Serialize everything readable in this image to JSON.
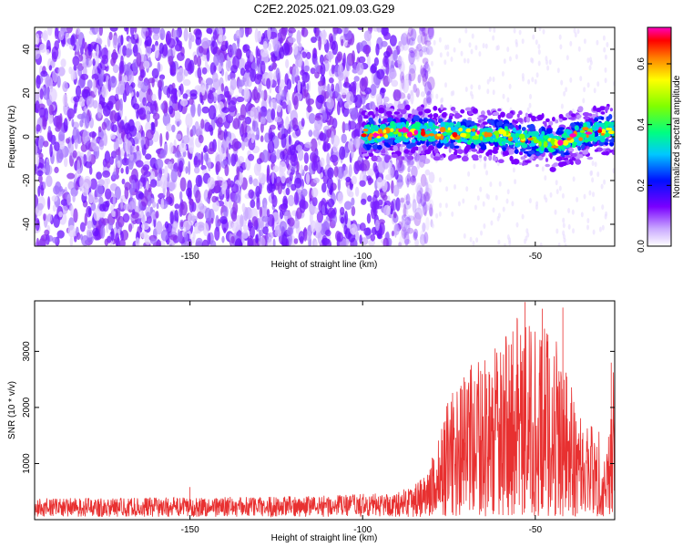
{
  "figure": {
    "title": "C2E2.2025.021.09.03.G29"
  },
  "chart_data": [
    {
      "type": "heatmap",
      "xlabel": "Height of straight line (km)",
      "ylabel": "Frequency (Hz)",
      "xlim": [
        -195,
        -27
      ],
      "ylim": [
        -50,
        50
      ],
      "xticks": [
        -150,
        -100,
        -50
      ],
      "xtick_labels": [
        "-150",
        "-100",
        "-50"
      ],
      "yticks": [
        -40,
        -20,
        0,
        20,
        40
      ],
      "ytick_labels": [
        "-40",
        "-20",
        "0",
        "20",
        "40"
      ],
      "noise_region_x": [
        -195,
        -80
      ],
      "signal_band": [
        {
          "x": -100,
          "f": 1
        },
        {
          "x": -90,
          "f": 2
        },
        {
          "x": -80,
          "f": 2
        },
        {
          "x": -70,
          "f": 1.5
        },
        {
          "x": -60,
          "f": 0.5
        },
        {
          "x": -50,
          "f": -2
        },
        {
          "x": -45,
          "f": -3
        },
        {
          "x": -40,
          "f": -1
        },
        {
          "x": -35,
          "f": 2
        },
        {
          "x": -27,
          "f": 3
        }
      ],
      "signal_halfwidth_hz": 4,
      "colorbar": {
        "label": "Normalized spectral amplitude",
        "range": [
          0.0,
          0.72
        ],
        "ticks": [
          0.0,
          0.2,
          0.4,
          0.6
        ],
        "tick_labels": [
          "0.0",
          "0.2",
          "0.4",
          "0.6"
        ],
        "colormap": "rainbow"
      },
      "grid": false
    },
    {
      "type": "line",
      "xlabel": "Height of straight line (km)",
      "ylabel": "SNR (10 * v/v)",
      "xlim": [
        -195,
        -27
      ],
      "ylim": [
        0,
        3900
      ],
      "xticks": [
        -150,
        -100,
        -50
      ],
      "xtick_labels": [
        "-150",
        "-100",
        "-50"
      ],
      "yticks": [
        1000,
        2000,
        3000
      ],
      "ytick_labels": [
        "1000",
        "2000",
        "3000"
      ],
      "color": "#e83030",
      "envelope": [
        {
          "x": -195,
          "y": 380
        },
        {
          "x": -150,
          "y": 400
        },
        {
          "x": -120,
          "y": 420
        },
        {
          "x": -90,
          "y": 480
        },
        {
          "x": -82,
          "y": 800
        },
        {
          "x": -78,
          "y": 1500
        },
        {
          "x": -75,
          "y": 2200
        },
        {
          "x": -70,
          "y": 2700
        },
        {
          "x": -65,
          "y": 2900
        },
        {
          "x": -60,
          "y": 3200
        },
        {
          "x": -55,
          "y": 3650
        },
        {
          "x": -50,
          "y": 3400
        },
        {
          "x": -45,
          "y": 3500
        },
        {
          "x": -40,
          "y": 2500
        },
        {
          "x": -35,
          "y": 1800
        },
        {
          "x": -30,
          "y": 1600
        },
        {
          "x": -27,
          "y": 2800
        }
      ],
      "spikes": [
        {
          "x": -150,
          "y": 580
        },
        {
          "x": -53,
          "y": 3880
        },
        {
          "x": -48,
          "y": 3760
        },
        {
          "x": -42,
          "y": 3780
        },
        {
          "x": -28,
          "y": 2800
        }
      ],
      "grid": false
    }
  ]
}
